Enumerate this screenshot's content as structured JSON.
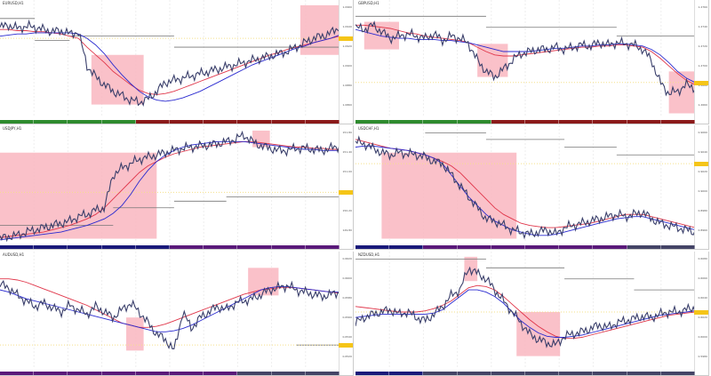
{
  "colors": {
    "price": "#3a3f6b",
    "ma_red": "#e0364a",
    "ma_blue": "#2a2ad0",
    "highlight": "#f9b6c0",
    "step": "#777777",
    "current": "#f5c518"
  },
  "panels": [
    {
      "title": "EURUSD,H1",
      "price_labels": [
        "1.0960",
        "1.0940",
        "1.0920",
        "1.0900",
        "1.0880",
        "1.0860"
      ],
      "footer": [
        "#2e8b2e",
        "#2e8b2e",
        "#2e8b2e",
        "#2e8b2e",
        "#8b1a1a",
        "#8b1a1a",
        "#8b1a1a",
        "#8b1a1a",
        "#8b1a1a",
        "#8b1a1a"
      ],
      "price": [
        80,
        82,
        79,
        81,
        80,
        78,
        76,
        77,
        74,
        76,
        45,
        35,
        28,
        22,
        18,
        14,
        12,
        15,
        22,
        30,
        32,
        34,
        36,
        38,
        40,
        42,
        44,
        46,
        48,
        50,
        52,
        54,
        56,
        58,
        62,
        66,
        70,
        72,
        75,
        80
      ],
      "ma_red": [
        78,
        78,
        77,
        77,
        76,
        76,
        75,
        74,
        72,
        70,
        62,
        55,
        48,
        40,
        34,
        28,
        23,
        20,
        19,
        20,
        22,
        25,
        28,
        31,
        34,
        37,
        40,
        43,
        46,
        49,
        52,
        55,
        57,
        60,
        62,
        64,
        66,
        68,
        70,
        72
      ],
      "ma_blue": [
        72,
        73,
        74,
        74,
        75,
        75,
        75,
        75,
        75,
        74,
        70,
        64,
        56,
        46,
        37,
        29,
        22,
        17,
        14,
        13,
        14,
        16,
        19,
        22,
        26,
        30,
        34,
        38,
        42,
        46,
        49,
        52,
        55,
        58,
        61,
        63,
        66,
        68,
        70,
        73
      ],
      "highlights": [
        [
          10.5,
          16.5,
          10,
          55
        ],
        [
          34.5,
          39.5,
          55,
          100
        ]
      ],
      "steps": [
        [
          0,
          4,
          88
        ],
        [
          4,
          8,
          68
        ],
        [
          8,
          20,
          72
        ],
        [
          20,
          39,
          62
        ]
      ],
      "current": 70
    },
    {
      "title": "GBPUSD,H1",
      "price_labels": [
        "1.2760",
        "1.2740",
        "1.2720",
        "1.2700",
        "1.2680",
        "1.2660"
      ],
      "footer": [
        "#2e8b2e",
        "#2e8b2e",
        "#2e8b2e",
        "#2e8b2e",
        "#8b1a1a",
        "#8b1a1a",
        "#8b1a1a",
        "#8b1a1a",
        "#8b1a1a",
        "#8b1a1a"
      ],
      "price": [
        80,
        78,
        82,
        76,
        70,
        72,
        74,
        72,
        70,
        74,
        68,
        72,
        70,
        65,
        50,
        40,
        35,
        42,
        50,
        56,
        58,
        60,
        60,
        62,
        60,
        62,
        64,
        63,
        66,
        64,
        66,
        65,
        64,
        60,
        50,
        30,
        20,
        22,
        28,
        25
      ],
      "ma_red": [
        82,
        82,
        81,
        80,
        79,
        77,
        75,
        74,
        72,
        71,
        70,
        69,
        68,
        66,
        62,
        58,
        55,
        54,
        54,
        55,
        56,
        57,
        58,
        59,
        60,
        61,
        62,
        62,
        63,
        63,
        64,
        64,
        63,
        62,
        58,
        52,
        45,
        38,
        32,
        28
      ],
      "ma_blue": [
        78,
        76,
        74,
        72,
        71,
        70,
        70,
        69,
        69,
        69,
        68,
        68,
        67,
        66,
        64,
        62,
        60,
        58,
        58,
        58,
        58,
        59,
        60,
        61,
        61,
        62,
        63,
        63,
        64,
        64,
        65,
        65,
        64,
        63,
        60,
        55,
        48,
        40,
        34,
        30
      ],
      "highlights": [
        [
          1,
          5,
          60,
          85
        ],
        [
          14,
          17.5,
          35,
          65
        ],
        [
          36,
          39.5,
          2,
          40
        ]
      ],
      "steps": [
        [
          0,
          15,
          90
        ],
        [
          15,
          30,
          80
        ],
        [
          30,
          39,
          72
        ]
      ],
      "current": 30
    },
    {
      "title": "USDJPY,H1",
      "price_labels": [
        "151.80",
        "151.40",
        "151.00",
        "150.60",
        "150.20",
        "149.80"
      ],
      "footer": [
        "#1a1a7a",
        "#1a1a7a",
        "#1a1a7a",
        "#1a1a7a",
        "#1a1a7a",
        "#5a1a7a",
        "#5a1a7a",
        "#5a1a7a",
        "#5a1a7a",
        "#5a1a7a"
      ],
      "price": [
        2,
        4,
        5,
        8,
        10,
        12,
        14,
        16,
        18,
        22,
        24,
        28,
        30,
        60,
        66,
        70,
        74,
        76,
        78,
        80,
        82,
        84,
        85,
        86,
        87,
        88,
        90,
        92,
        96,
        90,
        86,
        84,
        82,
        82,
        84,
        84,
        83,
        82,
        84,
        86
      ],
      "ma_red": [
        3,
        4,
        5,
        6,
        7,
        8,
        10,
        12,
        14,
        17,
        20,
        24,
        30,
        38,
        46,
        54,
        62,
        68,
        72,
        76,
        79,
        81,
        83,
        85,
        86,
        87,
        88,
        89,
        90,
        90,
        89,
        88,
        87,
        86,
        85,
        85,
        84,
        84,
        83,
        83
      ],
      "ma_blue": [
        1,
        2,
        3,
        4,
        5,
        6,
        7,
        8,
        10,
        12,
        14,
        17,
        20,
        25,
        32,
        42,
        54,
        64,
        72,
        78,
        82,
        85,
        87,
        88,
        89,
        90,
        90,
        90,
        90,
        89,
        88,
        87,
        86,
        85,
        84,
        83,
        83,
        82,
        82,
        82
      ],
      "highlights": [
        [
          0,
          18,
          2,
          80
        ],
        [
          29,
          31,
          85,
          100
        ]
      ],
      "steps": [
        [
          0,
          13,
          14
        ],
        [
          13,
          20,
          30
        ],
        [
          20,
          26,
          36
        ],
        [
          26,
          39,
          40
        ]
      ],
      "current": 44
    },
    {
      "title": "USDCHF,H1",
      "price_labels": [
        "0.9060",
        "0.9040",
        "0.9020",
        "0.9000",
        "0.8980",
        "0.8960"
      ],
      "footer": [
        "#1a1a7a",
        "#1a1a7a",
        "#5a1a7a",
        "#5a1a7a",
        "#5a1a7a",
        "#5a1a7a",
        "#5a1a7a",
        "#5a1a7a",
        "#444466",
        "#444466"
      ],
      "price": [
        90,
        88,
        84,
        80,
        78,
        80,
        79,
        78,
        76,
        72,
        70,
        60,
        50,
        40,
        30,
        20,
        18,
        14,
        10,
        8,
        6,
        8,
        10,
        6,
        12,
        14,
        16,
        18,
        20,
        22,
        24,
        22,
        24,
        26,
        20,
        16,
        14,
        12,
        10,
        8
      ],
      "ma_red": [
        92,
        90,
        88,
        86,
        84,
        83,
        82,
        80,
        78,
        75,
        72,
        68,
        62,
        54,
        46,
        38,
        30,
        24,
        20,
        16,
        14,
        13,
        12,
        12,
        13,
        14,
        15,
        16,
        18,
        20,
        22,
        24,
        24,
        24,
        22,
        20,
        18,
        16,
        14,
        12
      ],
      "ma_blue": [
        85,
        86,
        86,
        85,
        84,
        83,
        82,
        80,
        78,
        75,
        70,
        60,
        50,
        40,
        32,
        24,
        18,
        14,
        10,
        8,
        6,
        5,
        5,
        6,
        8,
        10,
        12,
        14,
        16,
        18,
        20,
        21,
        22,
        22,
        20,
        18,
        16,
        14,
        12,
        10
      ],
      "highlights": [
        [
          3,
          18.5,
          2,
          80
        ]
      ],
      "steps": [
        [
          8,
          15,
          98
        ],
        [
          15,
          24,
          92
        ],
        [
          24,
          30,
          85
        ],
        [
          30,
          39,
          78
        ]
      ],
      "current": 70
    },
    {
      "title": "AUDUSD,H1",
      "price_labels": [
        "0.6620",
        "0.6600",
        "0.6580",
        "0.6560",
        "0.6540",
        "0.6520"
      ],
      "footer": [
        "#5a1a7a",
        "#5a1a7a",
        "#5a1a7a",
        "#5a1a7a",
        "#5a1a7a",
        "#5a1a7a",
        "#5a1a7a",
        "#444466",
        "#444466",
        "#444466"
      ],
      "price": [
        75,
        72,
        65,
        60,
        55,
        58,
        54,
        50,
        56,
        52,
        48,
        55,
        50,
        45,
        52,
        58,
        50,
        40,
        30,
        25,
        15,
        50,
        35,
        45,
        50,
        55,
        52,
        58,
        60,
        62,
        66,
        70,
        72,
        74,
        70,
        68,
        66,
        64,
        66,
        68
      ],
      "ma_red": [
        80,
        80,
        79,
        77,
        74,
        71,
        68,
        65,
        62,
        59,
        56,
        52,
        48,
        44,
        40,
        38,
        36,
        36,
        37,
        39,
        42,
        45,
        48,
        51,
        54,
        57,
        60,
        63,
        66,
        68,
        70,
        71,
        72,
        72,
        72,
        71,
        70,
        69,
        68,
        67
      ],
      "ma_blue": [
        70,
        68,
        65,
        62,
        60,
        58,
        56,
        54,
        52,
        50,
        48,
        46,
        44,
        42,
        40,
        38,
        36,
        34,
        32,
        32,
        33,
        35,
        38,
        42,
        46,
        50,
        54,
        58,
        62,
        66,
        70,
        72,
        73,
        73,
        72,
        71,
        70,
        69,
        68,
        68
      ],
      "highlights": [
        [
          14.5,
          16.5,
          15,
          45
        ],
        [
          28.5,
          32,
          65,
          90
        ]
      ],
      "steps": [
        [
          34,
          39,
          20
        ]
      ],
      "current": 20
    },
    {
      "title": "NZDUSD,H1",
      "price_labels": [
        "0.6080",
        "0.6060",
        "0.6040",
        "0.6020",
        "0.6000",
        "0.5980"
      ],
      "footer": [
        "#1a1a7a",
        "#1a1a7a",
        "#444466",
        "#444466",
        "#444466",
        "#444466",
        "#444466",
        "#444466",
        "#444466",
        "#444466"
      ],
      "price": [
        40,
        45,
        48,
        50,
        52,
        48,
        50,
        45,
        42,
        48,
        55,
        65,
        70,
        90,
        85,
        80,
        70,
        60,
        50,
        40,
        30,
        25,
        22,
        20,
        28,
        30,
        32,
        35,
        38,
        36,
        40,
        42,
        44,
        46,
        45,
        48,
        50,
        50,
        52,
        54
      ],
      "ma_red": [
        55,
        54,
        53,
        52,
        51,
        50,
        50,
        50,
        51,
        53,
        56,
        60,
        66,
        72,
        74,
        73,
        70,
        64,
        57,
        50,
        43,
        37,
        32,
        28,
        26,
        26,
        27,
        29,
        31,
        33,
        35,
        37,
        39,
        41,
        43,
        45,
        47,
        48,
        49,
        50
      ],
      "ma_blue": [
        45,
        46,
        47,
        48,
        48,
        48,
        48,
        48,
        48,
        49,
        52,
        58,
        64,
        70,
        70,
        68,
        64,
        58,
        50,
        42,
        36,
        31,
        28,
        27,
        27,
        28,
        29,
        31,
        33,
        35,
        37,
        39,
        41,
        43,
        45,
        47,
        48,
        49,
        50,
        51
      ],
      "highlights": [
        [
          18.5,
          23.5,
          10,
          50
        ],
        [
          12.5,
          14,
          78,
          100
        ]
      ],
      "steps": [
        [
          0,
          15,
          98
        ],
        [
          15,
          24,
          90
        ],
        [
          24,
          32,
          80
        ],
        [
          32,
          39,
          70
        ]
      ],
      "current": 50
    }
  ]
}
